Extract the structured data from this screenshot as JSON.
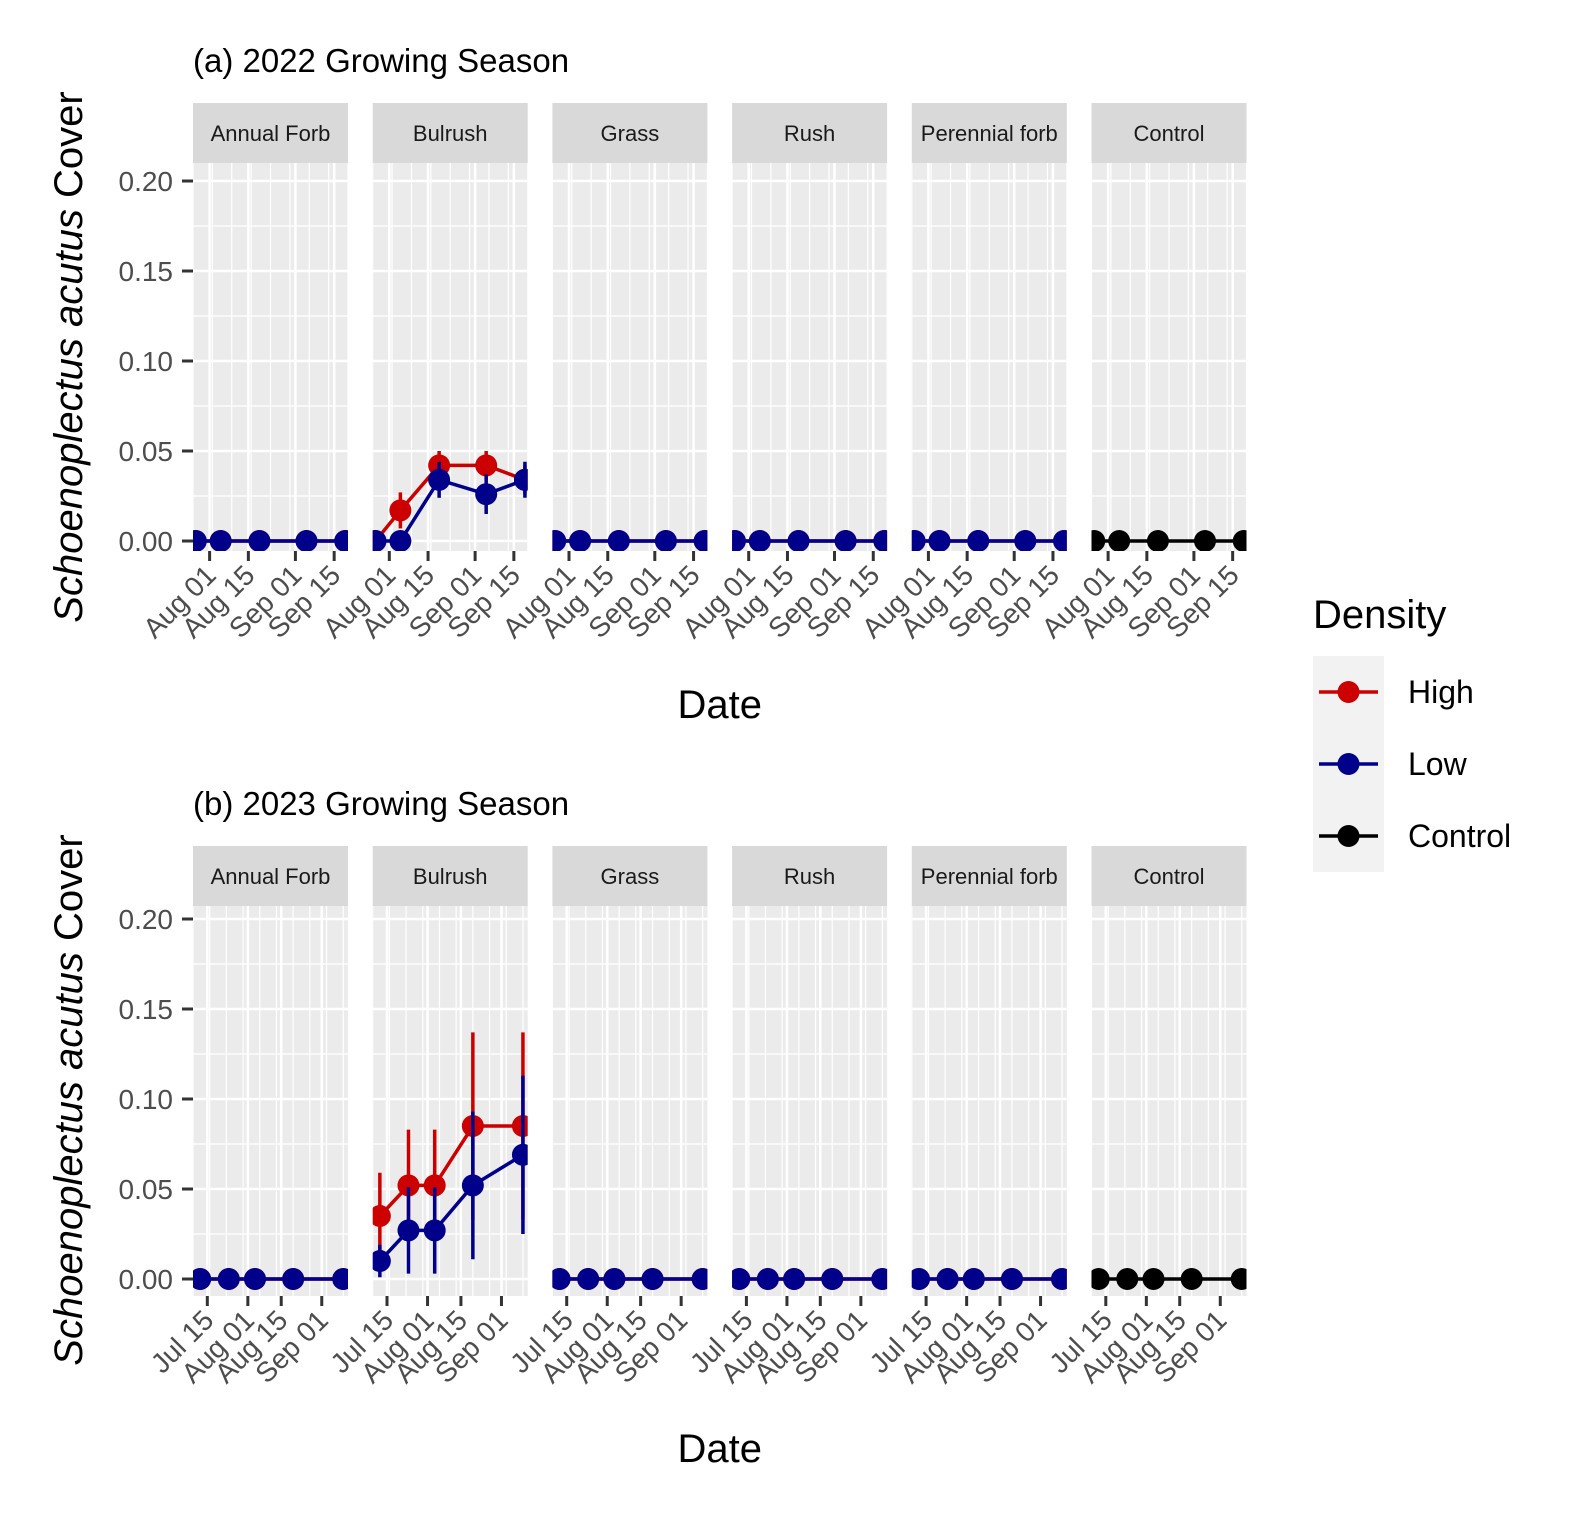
{
  "legend": {
    "title": "Density",
    "items": [
      {
        "label": "High",
        "color": "#CC0000"
      },
      {
        "label": "Low",
        "color": "#00008B"
      },
      {
        "label": "Control",
        "color": "#000000"
      }
    ]
  },
  "chart_data": [
    {
      "type": "line",
      "title": "(a) 2022 Growing Season",
      "xlabel": "Date",
      "ylabel_italic": "Schoenoplectus acutus",
      "ylabel_rest": " Cover",
      "facets": [
        "Annual Forb",
        "Bulrush",
        "Grass",
        "Rush",
        "Perennial forb",
        "Control"
      ],
      "xlim": [
        "2022-07-26",
        "2022-09-20"
      ],
      "ylim": [
        -0.008,
        0.22
      ],
      "x_ticks": [
        {
          "date": "2022-08-01",
          "label": "Aug 01"
        },
        {
          "date": "2022-08-15",
          "label": "Aug 15"
        },
        {
          "date": "2022-09-01",
          "label": "Sep 01"
        },
        {
          "date": "2022-09-15",
          "label": "Sep 15"
        }
      ],
      "y_ticks": [
        {
          "value": 0.0,
          "label": "0.00"
        },
        {
          "value": 0.05,
          "label": "0.05"
        },
        {
          "value": 0.1,
          "label": "0.10"
        },
        {
          "value": 0.15,
          "label": "0.15"
        },
        {
          "value": 0.2,
          "label": "0.20"
        }
      ],
      "dates": [
        "2022-07-27",
        "2022-08-05",
        "2022-08-19",
        "2022-09-05",
        "2022-09-19"
      ],
      "series": [
        {
          "facet": "Annual Forb",
          "density": "High",
          "values": [
            0,
            0,
            0,
            0,
            0
          ],
          "err": [
            0,
            0,
            0,
            0,
            0
          ]
        },
        {
          "facet": "Annual Forb",
          "density": "Low",
          "values": [
            0,
            0,
            0,
            0,
            0
          ],
          "err": [
            0,
            0,
            0,
            0,
            0
          ]
        },
        {
          "facet": "Bulrush",
          "density": "High",
          "values": [
            0,
            0.017,
            0.042,
            0.042,
            0.034
          ],
          "err": [
            0,
            0.01,
            0.008,
            0.008,
            0.008
          ]
        },
        {
          "facet": "Bulrush",
          "density": "Low",
          "values": [
            0,
            0,
            0.034,
            0.026,
            0.034
          ],
          "err": [
            0,
            0,
            0.01,
            0.011,
            0.01
          ]
        },
        {
          "facet": "Grass",
          "density": "High",
          "values": [
            0,
            0,
            0,
            0,
            0
          ],
          "err": [
            0,
            0,
            0,
            0,
            0
          ]
        },
        {
          "facet": "Grass",
          "density": "Low",
          "values": [
            0,
            0,
            0,
            0,
            0
          ],
          "err": [
            0,
            0,
            0,
            0,
            0
          ]
        },
        {
          "facet": "Rush",
          "density": "High",
          "values": [
            0,
            0,
            0,
            0,
            0
          ],
          "err": [
            0,
            0,
            0,
            0,
            0
          ]
        },
        {
          "facet": "Rush",
          "density": "Low",
          "values": [
            0,
            0,
            0,
            0,
            0
          ],
          "err": [
            0,
            0,
            0,
            0,
            0
          ]
        },
        {
          "facet": "Perennial forb",
          "density": "High",
          "values": [
            0,
            0,
            0,
            0,
            0
          ],
          "err": [
            0,
            0,
            0,
            0,
            0
          ]
        },
        {
          "facet": "Perennial forb",
          "density": "Low",
          "values": [
            0,
            0,
            0,
            0,
            0
          ],
          "err": [
            0,
            0,
            0,
            0,
            0
          ]
        },
        {
          "facet": "Control",
          "density": "Control",
          "values": [
            0,
            0,
            0,
            0,
            0
          ],
          "err": [
            0,
            0,
            0,
            0,
            0
          ]
        }
      ]
    },
    {
      "type": "line",
      "title": "(b) 2023 Growing Season",
      "xlabel": "Date",
      "ylabel_italic": "Schoenoplectus acutus",
      "ylabel_rest": " Cover",
      "facets": [
        "Annual Forb",
        "Bulrush",
        "Grass",
        "Rush",
        "Perennial forb",
        "Control"
      ],
      "xlim": [
        "2023-07-09",
        "2023-09-12"
      ],
      "ylim": [
        -0.01,
        0.22
      ],
      "x_ticks": [
        {
          "date": "2023-07-15",
          "label": "Jul 15"
        },
        {
          "date": "2023-08-01",
          "label": "Aug 01"
        },
        {
          "date": "2023-08-15",
          "label": "Aug 15"
        },
        {
          "date": "2023-09-01",
          "label": "Sep 01"
        }
      ],
      "y_ticks": [
        {
          "value": 0.0,
          "label": "0.00"
        },
        {
          "value": 0.05,
          "label": "0.05"
        },
        {
          "value": 0.1,
          "label": "0.10"
        },
        {
          "value": 0.15,
          "label": "0.15"
        },
        {
          "value": 0.2,
          "label": "0.20"
        }
      ],
      "dates": [
        "2023-07-12",
        "2023-07-24",
        "2023-08-04",
        "2023-08-20",
        "2023-09-10"
      ],
      "series": [
        {
          "facet": "Annual Forb",
          "density": "High",
          "values": [
            0,
            0,
            0,
            0,
            0
          ],
          "err": [
            0,
            0,
            0,
            0,
            0
          ]
        },
        {
          "facet": "Annual Forb",
          "density": "Low",
          "values": [
            0,
            0,
            0,
            0,
            0
          ],
          "err": [
            0,
            0,
            0,
            0,
            0
          ]
        },
        {
          "facet": "Bulrush",
          "density": "High",
          "values": [
            0.035,
            0.052,
            0.052,
            0.085,
            0.085
          ],
          "err": [
            0.024,
            0.031,
            0.031,
            0.052,
            0.052
          ]
        },
        {
          "facet": "Bulrush",
          "density": "Low",
          "values": [
            0.01,
            0.027,
            0.027,
            0.052,
            0.069
          ],
          "err": [
            0.009,
            0.024,
            0.024,
            0.041,
            0.044
          ]
        },
        {
          "facet": "Grass",
          "density": "High",
          "values": [
            0,
            0,
            0,
            0,
            0
          ],
          "err": [
            0,
            0,
            0,
            0,
            0
          ]
        },
        {
          "facet": "Grass",
          "density": "Low",
          "values": [
            0,
            0,
            0,
            0,
            0
          ],
          "err": [
            0,
            0,
            0,
            0,
            0
          ]
        },
        {
          "facet": "Rush",
          "density": "High",
          "values": [
            0,
            0,
            0,
            0,
            0
          ],
          "err": [
            0,
            0,
            0,
            0,
            0
          ]
        },
        {
          "facet": "Rush",
          "density": "Low",
          "values": [
            0,
            0,
            0,
            0,
            0
          ],
          "err": [
            0,
            0,
            0,
            0,
            0
          ]
        },
        {
          "facet": "Perennial forb",
          "density": "High",
          "values": [
            0,
            0,
            0,
            0,
            0
          ],
          "err": [
            0,
            0,
            0,
            0,
            0
          ]
        },
        {
          "facet": "Perennial forb",
          "density": "Low",
          "values": [
            0,
            0,
            0,
            0,
            0
          ],
          "err": [
            0,
            0,
            0,
            0,
            0
          ]
        },
        {
          "facet": "Control",
          "density": "Control",
          "values": [
            0,
            0,
            0,
            0,
            0
          ],
          "err": [
            0,
            0,
            0,
            0,
            0
          ]
        }
      ]
    }
  ]
}
